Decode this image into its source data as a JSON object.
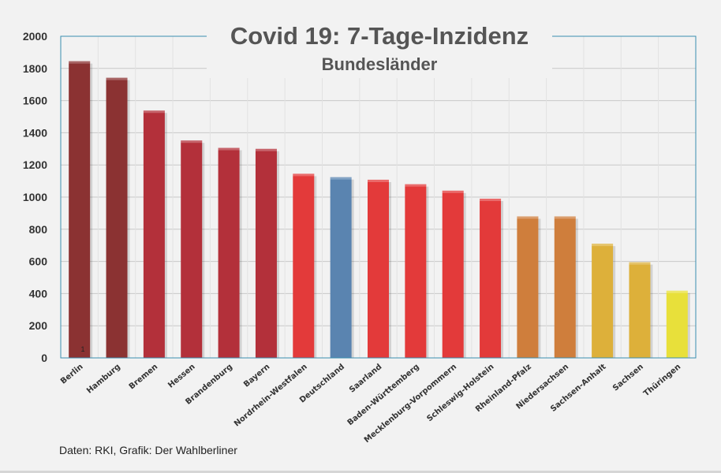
{
  "chart_data": {
    "type": "bar",
    "title": "Covid 19: 7-Tage-Inzidenz",
    "subtitle": "Bundesländer",
    "xlabel": "",
    "ylabel": "",
    "ylim": [
      0,
      2000
    ],
    "yticks": [
      0,
      200,
      400,
      600,
      800,
      1000,
      1200,
      1400,
      1600,
      1800,
      2000
    ],
    "grid": true,
    "categories": [
      "Berlin",
      "Hamburg",
      "Bremen",
      "Hessen",
      "Brandenburg",
      "Bayern",
      "Nordrhein-Westfalen",
      "Deutschland",
      "Saarland",
      "Baden-Württemberg",
      "Mecklenburg-Vorpommern",
      "Schleswig-Holstein",
      "Rheinland-Pfalz",
      "Niedersachsen",
      "Sachsen-Anhalt",
      "Sachsen",
      "Thüringen"
    ],
    "values": [
      1845,
      1742,
      1538,
      1352,
      1306,
      1300,
      1145,
      1124,
      1108,
      1080,
      1040,
      990,
      880,
      880,
      710,
      595,
      418
    ],
    "colors": [
      "#8b3232",
      "#8b3232",
      "#b3303a",
      "#b3303a",
      "#b3303a",
      "#b3303a",
      "#e33a3a",
      "#5a84b0",
      "#e33a3a",
      "#e33a3a",
      "#e33a3a",
      "#e33a3a",
      "#cf7e3c",
      "#cf7e3c",
      "#ddb03a",
      "#ddb03a",
      "#e8e03a"
    ],
    "annotation": "1"
  },
  "source": "Daten: RKI, Grafik: Der Wahlberliner"
}
